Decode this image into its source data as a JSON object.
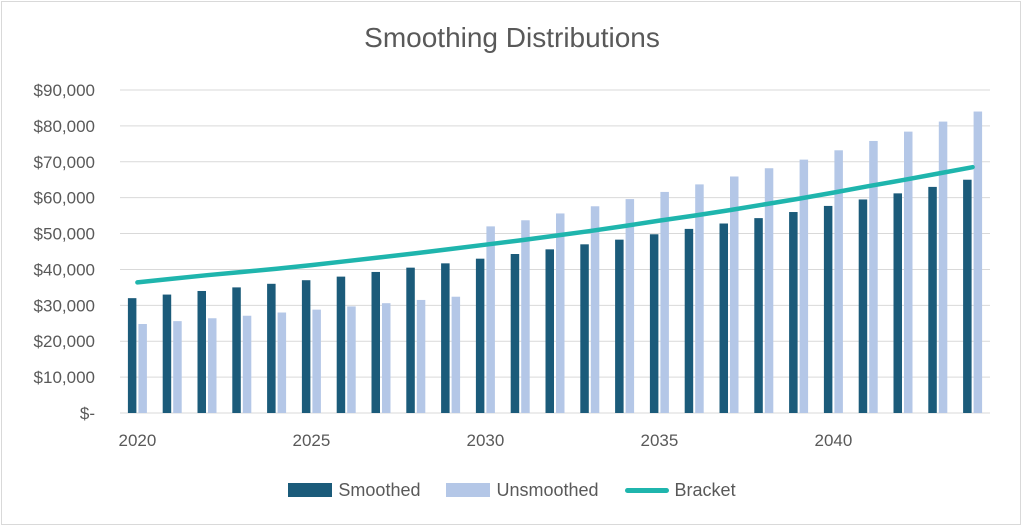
{
  "colors": {
    "smoothed": "#1b5b7a",
    "unsmoothed": "#b4c7e7",
    "bracket": "#1fb5ad",
    "grid": "#d9d9d9",
    "text": "#595959"
  },
  "chart_data": {
    "type": "bar",
    "title": "Smoothing Distributions",
    "xlabel": "",
    "ylabel": "",
    "x": [
      2020,
      2021,
      2022,
      2023,
      2024,
      2025,
      2026,
      2027,
      2028,
      2029,
      2030,
      2031,
      2032,
      2033,
      2034,
      2035,
      2036,
      2037,
      2038,
      2039,
      2040,
      2041,
      2042,
      2043,
      2044
    ],
    "x_tick_labels": [
      "2020",
      "2025",
      "2030",
      "2035",
      "2040"
    ],
    "x_ticks": [
      2020,
      2025,
      2030,
      2035,
      2040
    ],
    "y_tick_labels": [
      "$-",
      "$10,000",
      "$20,000",
      "$30,000",
      "$40,000",
      "$50,000",
      "$60,000",
      "$70,000",
      "$80,000",
      "$90,000"
    ],
    "y_ticks": [
      0,
      10000,
      20000,
      30000,
      40000,
      50000,
      60000,
      70000,
      80000,
      90000
    ],
    "ylim": [
      0,
      90000
    ],
    "grid": true,
    "legend": "bottom",
    "series": [
      {
        "name": "Smoothed",
        "type": "bar",
        "values": [
          32000,
          33000,
          34000,
          35000,
          36000,
          37000,
          38000,
          39300,
          40500,
          41700,
          43000,
          44300,
          45600,
          47000,
          48300,
          49800,
          51300,
          52800,
          54300,
          56000,
          57700,
          59500,
          61200,
          63000,
          65000
        ]
      },
      {
        "name": "Unsmoothed",
        "type": "bar",
        "values": [
          24800,
          25600,
          26400,
          27100,
          28000,
          28800,
          29700,
          30600,
          31500,
          32400,
          52000,
          53700,
          55600,
          57600,
          59600,
          61600,
          63700,
          65900,
          68200,
          70600,
          73200,
          75800,
          78400,
          81200,
          84000
        ]
      },
      {
        "name": "Bracket",
        "type": "line",
        "values": [
          36400,
          37400,
          38400,
          39300,
          40200,
          41200,
          42300,
          43400,
          44500,
          45700,
          46900,
          48100,
          49400,
          50700,
          52100,
          53600,
          55000,
          56500,
          58100,
          59700,
          61400,
          63200,
          64900,
          66700,
          68500
        ]
      }
    ]
  }
}
